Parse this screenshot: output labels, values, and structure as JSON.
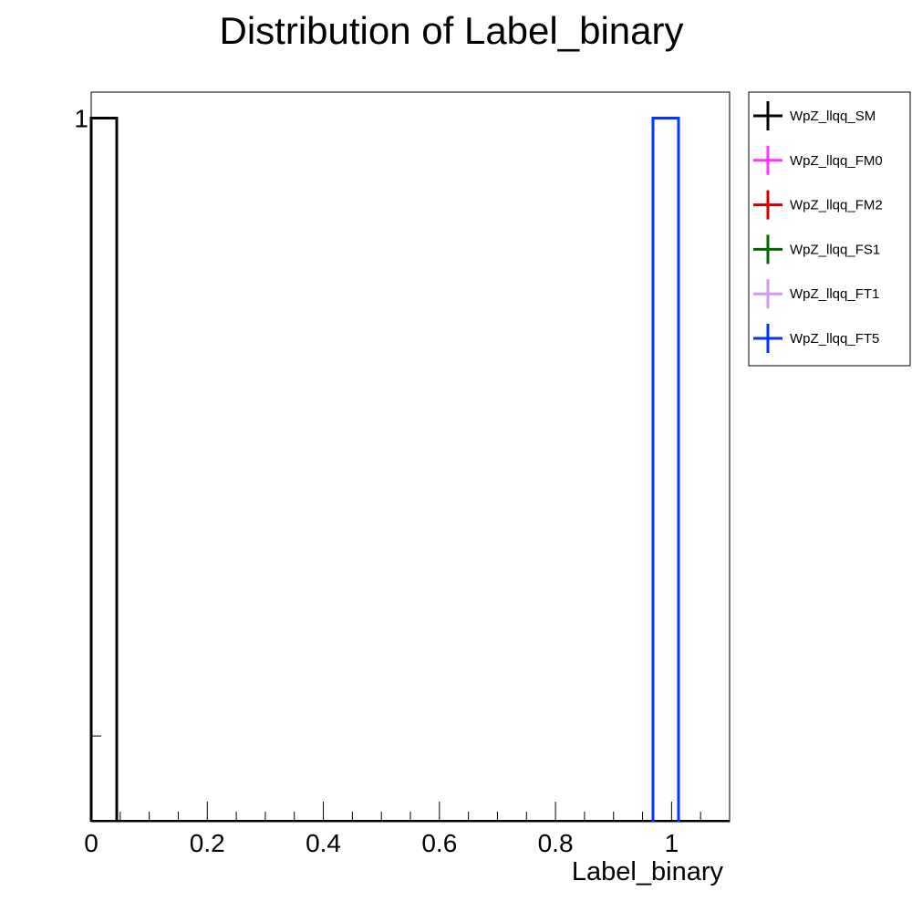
{
  "chart_data": {
    "type": "histogram",
    "title": "Distribution of Label_binary",
    "xlabel": "Label_binary",
    "ylabel": "",
    "xlim": [
      0,
      1.1
    ],
    "ylim": [
      0,
      1.07
    ],
    "x_ticks": [
      0,
      0.2,
      0.4,
      0.6,
      0.8,
      1
    ],
    "x_tick_labels": [
      "0",
      "0.2",
      "0.4",
      "0.6",
      "0.8",
      "1"
    ],
    "y_ticks": [
      1
    ],
    "y_tick_labels": [
      "1"
    ],
    "y_scale": "log",
    "y_floor": 0.16,
    "grid": false,
    "legend_position": "outside-right",
    "series": [
      {
        "name": "WpZ_llqq_SM",
        "color": "#000000",
        "bins": [
          [
            0,
            0.044,
            1
          ]
        ]
      },
      {
        "name": "WpZ_llqq_FM0",
        "color": "#ff33ff",
        "bins": []
      },
      {
        "name": "WpZ_llqq_FM2",
        "color": "#cc0000",
        "bins": []
      },
      {
        "name": "WpZ_llqq_FS1",
        "color": "#006600",
        "bins": []
      },
      {
        "name": "WpZ_llqq_FT1",
        "color": "#cc99ee",
        "bins": []
      },
      {
        "name": "WpZ_llqq_FT5",
        "color": "#0033ff",
        "bins": [
          [
            0.968,
            1.012,
            1
          ]
        ]
      }
    ]
  }
}
